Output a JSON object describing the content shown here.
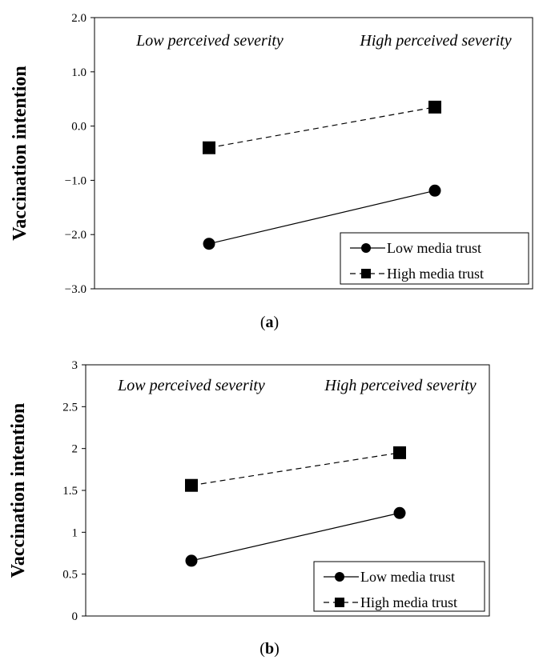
{
  "chart_data": [
    {
      "type": "line",
      "panel_label": "a",
      "ylabel": "Vaccination intention",
      "ylim": [
        -3.0,
        2.0
      ],
      "yticks": [
        -3.0,
        -2.0,
        -1.0,
        0.0,
        1.0,
        2.0
      ],
      "ytick_labels": [
        "−3.0",
        "−2.0",
        "−1.0",
        "0.0",
        "1.0",
        "2.0"
      ],
      "categories": [
        "Low perceived severity",
        "High perceived severity"
      ],
      "series": [
        {
          "name": "Low media trust",
          "marker": "circle",
          "line": "solid",
          "values": [
            -2.17,
            -1.19
          ]
        },
        {
          "name": "High media trust",
          "marker": "square",
          "line": "dashed",
          "values": [
            -0.4,
            0.35
          ]
        }
      ],
      "legend": "bottom-right",
      "grid": false
    },
    {
      "type": "line",
      "panel_label": "b",
      "ylabel": "Vaccination intention",
      "ylim": [
        0,
        3
      ],
      "yticks": [
        0,
        0.5,
        1,
        1.5,
        2,
        2.5,
        3
      ],
      "ytick_labels": [
        "0",
        "0.5",
        "1",
        "1.5",
        "2",
        "2.5",
        "3"
      ],
      "categories": [
        "Low perceived severity",
        "High perceived severity"
      ],
      "series": [
        {
          "name": "Low media trust",
          "marker": "circle",
          "line": "solid",
          "values": [
            0.66,
            1.23
          ]
        },
        {
          "name": "High media trust",
          "marker": "square",
          "line": "dashed",
          "values": [
            1.56,
            1.95
          ]
        }
      ],
      "legend": "bottom-right",
      "grid": false
    }
  ]
}
